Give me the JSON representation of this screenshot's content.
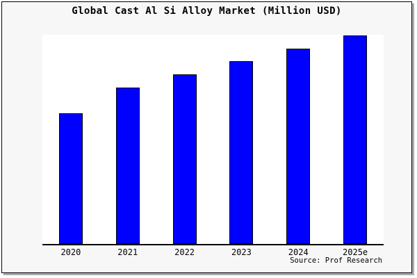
{
  "page": {
    "title": "Global Cast Al Si Alloy Market (Million USD)",
    "source_text": "Source: Prof Research"
  },
  "chart_data": {
    "type": "bar",
    "title": "Global Cast Al Si Alloy Market (Million USD)",
    "categories": [
      "2020",
      "2021",
      "2022",
      "2023",
      "2024",
      "2025e"
    ],
    "values": [
      62.8,
      75.2,
      81.5,
      87.9,
      93.9,
      100
    ],
    "value_note": "no y-axis ticks or data labels shown; values estimated from bar heights, normalized to 2025e = 100",
    "xlabel": "",
    "ylabel": "",
    "ylim": [
      0,
      100.5
    ],
    "grid": false,
    "legend": false,
    "annotations": [
      "Source: Prof Research"
    ],
    "colors": {
      "bar_fill": "#0000ff",
      "bar_border": "#000000",
      "plot_background": "#ffffff",
      "card_background": "#f7f7f7",
      "card_border": "#000000",
      "shadow": "#aaaaaa",
      "text": "#000000"
    }
  }
}
